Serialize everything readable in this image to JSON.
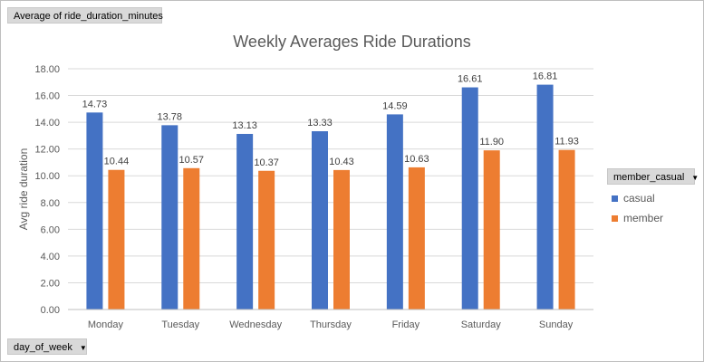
{
  "field_buttons": {
    "values": "Average of ride_duration_minutes",
    "axis": "day_of_week",
    "legend": "member_casual"
  },
  "colors": {
    "casual": "#4472c4",
    "member": "#ed7d31",
    "grid": "#d9d9d9"
  },
  "chart_data": {
    "type": "bar",
    "title": "Weekly Averages Ride Durations",
    "xlabel": "",
    "ylabel": "Avg ride duration",
    "ylim": [
      0,
      18
    ],
    "ytick_step": 2,
    "ytick_labels": [
      "0.00",
      "2.00",
      "4.00",
      "6.00",
      "8.00",
      "10.00",
      "12.00",
      "14.00",
      "16.00",
      "18.00"
    ],
    "grid": true,
    "legend_position": "right",
    "categories": [
      "Monday",
      "Tuesday",
      "Wednesday",
      "Thursday",
      "Friday",
      "Saturday",
      "Sunday"
    ],
    "series": [
      {
        "name": "casual",
        "values": [
          14.73,
          13.78,
          13.13,
          13.33,
          14.59,
          16.61,
          16.81
        ],
        "labels": [
          "14.73",
          "13.78",
          "13.13",
          "13.33",
          "14.59",
          "16.61",
          "16.81"
        ]
      },
      {
        "name": "member",
        "values": [
          10.44,
          10.57,
          10.37,
          10.43,
          10.63,
          11.9,
          11.93
        ],
        "labels": [
          "10.44",
          "10.57",
          "10.37",
          "10.43",
          "10.63",
          "11.90",
          "11.93"
        ]
      }
    ]
  }
}
